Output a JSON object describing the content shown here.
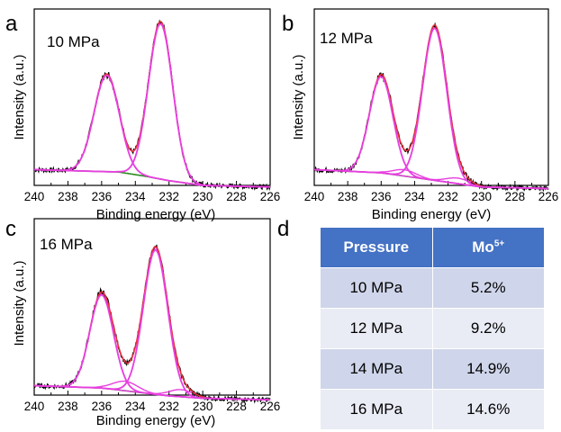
{
  "chart_data": [
    {
      "type": "line",
      "panel": "a",
      "label": "10 MPa",
      "xlabel": "Binding energy (eV)",
      "ylabel": "Intensity (a.u.)",
      "xlim": [
        240,
        226
      ],
      "x_ticks": [
        "240",
        "238",
        "236",
        "234",
        "232",
        "230",
        "228",
        "226"
      ],
      "ylim": [
        0,
        1.12
      ],
      "y_ticks_shown": false,
      "background": {
        "x": [
          240,
          235,
          233.5,
          232,
          230,
          226
        ],
        "y": [
          0.1,
          0.085,
          0.06,
          0.03,
          0.0,
          -0.01
        ]
      },
      "peaks": [
        {
          "center": 235.7,
          "height": 0.62,
          "width": 0.75
        },
        {
          "center": 232.5,
          "height": 1.0,
          "width": 0.72
        }
      ]
    },
    {
      "type": "line",
      "panel": "b",
      "label": "12 MPa",
      "xlabel": "Binding energy (eV)",
      "ylabel": "Intensity (a.u.)",
      "xlim": [
        240,
        226
      ],
      "x_ticks": [
        "240",
        "238",
        "236",
        "234",
        "232",
        "230",
        "228",
        "226"
      ],
      "ylim": [
        0,
        1.12
      ],
      "y_ticks_shown": false,
      "background": {
        "x": [
          240,
          236,
          234,
          232,
          230,
          226
        ],
        "y": [
          0.1,
          0.08,
          0.05,
          0.02,
          -0.01,
          -0.02
        ]
      },
      "peaks": [
        {
          "center": 236.0,
          "height": 0.62,
          "width": 0.7
        },
        {
          "center": 234.6,
          "height": 0.04,
          "width": 0.7
        },
        {
          "center": 232.8,
          "height": 0.98,
          "width": 0.72
        },
        {
          "center": 231.4,
          "height": 0.035,
          "width": 0.7
        }
      ]
    },
    {
      "type": "line",
      "panel": "c",
      "label": "16 MPa",
      "xlabel": "Binding energy (eV)",
      "ylabel": "Intensity (a.u.)",
      "xlim": [
        240,
        226
      ],
      "x_ticks": [
        "240",
        "238",
        "236",
        "234",
        "232",
        "230",
        "228",
        "226"
      ],
      "ylim": [
        0,
        1.12
      ],
      "y_ticks_shown": false,
      "background": {
        "x": [
          240,
          236,
          234,
          232,
          230,
          226
        ],
        "y": [
          0.06,
          0.045,
          0.02,
          -0.005,
          -0.02,
          -0.03
        ]
      },
      "peaks": [
        {
          "center": 236.0,
          "height": 0.6,
          "width": 0.7
        },
        {
          "center": 234.6,
          "height": 0.06,
          "width": 0.75
        },
        {
          "center": 232.8,
          "height": 0.93,
          "width": 0.72
        },
        {
          "center": 231.3,
          "height": 0.045,
          "width": 0.7
        }
      ]
    },
    {
      "type": "table",
      "panel": "d",
      "columns": [
        "Pressure",
        "Mo",
        "5+"
      ],
      "rows": [
        [
          "10 MPa",
          "5.2%"
        ],
        [
          "12 MPa",
          "9.2%"
        ],
        [
          "14 MPa",
          "14.9%"
        ],
        [
          "16 MPa",
          "14.6%"
        ]
      ]
    }
  ],
  "colors": {
    "raw": "#000000",
    "envelope": "#e8303a",
    "fit_peak": "#e83fe0",
    "background": "#2a8a1f",
    "table_header": "#4472c4",
    "table_row_odd": "#cfd5ea",
    "table_row_even": "#e9ebf5"
  }
}
